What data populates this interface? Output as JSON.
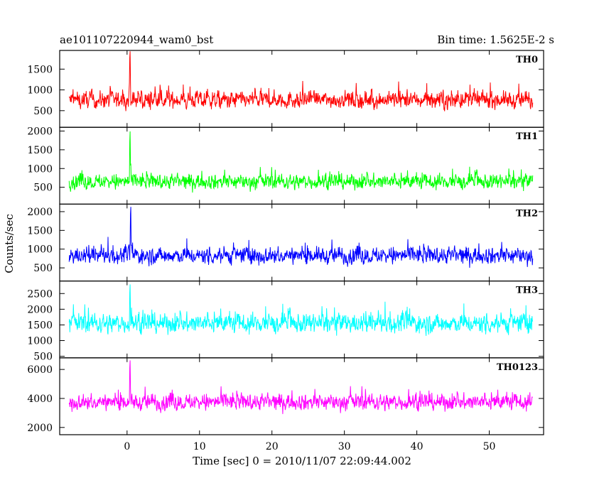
{
  "title": "ae101107220944_wam0_bst",
  "bin_time": "Bin time: 1.5625E-2 s",
  "xlabel": "Time [sec] 0 = 2010/11/07 22:09:44.002",
  "ylabel": "Counts/sec",
  "chart_data": {
    "type": "line",
    "title": "ae101107220944_wam0_bst",
    "xlabel": "Time [sec] 0 = 2010/11/07 22:09:44.002",
    "ylabel": "Counts/sec",
    "xlim": [
      -9.3,
      57.5
    ],
    "x_start": -8.0,
    "x_end": 56.0,
    "x_ticks": [
      0,
      10,
      20,
      30,
      40,
      50
    ],
    "grid": false,
    "panels": [
      {
        "name": "TH0",
        "color": "#ff0000",
        "ylim": [
          100,
          1950
        ],
        "y_ticks": [
          500,
          1000,
          1500
        ],
        "mean": 760,
        "spread": 330,
        "peak_time": 0.4,
        "peak_value": 1980
      },
      {
        "name": "TH1",
        "color": "#00ff00",
        "ylim": [
          50,
          2100
        ],
        "y_ticks": [
          500,
          1000,
          1500,
          2000
        ],
        "mean": 650,
        "spread": 320,
        "peak_time": 0.4,
        "peak_value": 2080
      },
      {
        "name": "TH2",
        "color": "#0000ff",
        "ylim": [
          150,
          2200
        ],
        "y_ticks": [
          500,
          1000,
          1500,
          2000
        ],
        "mean": 830,
        "spread": 360,
        "peak_time": 0.5,
        "peak_value": 2190
      },
      {
        "name": "TH3",
        "color": "#00ffff",
        "ylim": [
          450,
          2900
        ],
        "y_ticks": [
          500,
          1000,
          1500,
          2000,
          2500
        ],
        "mean": 1550,
        "spread": 500,
        "peak_time": 0.4,
        "peak_value": 2880
      },
      {
        "name": "TH0123",
        "color": "#ff00ff",
        "ylim": [
          1500,
          6800
        ],
        "y_ticks": [
          2000,
          4000,
          6000
        ],
        "mean": 3750,
        "spread": 900,
        "peak_time": 0.4,
        "peak_value": 6800
      }
    ]
  }
}
